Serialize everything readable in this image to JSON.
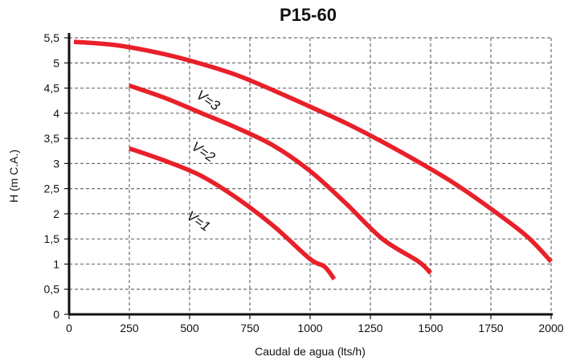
{
  "chart_data": {
    "type": "line",
    "title": "P15-60",
    "xlabel": "Caudal de agua (lts/h)",
    "ylabel": "H (m C.A.)",
    "xlim": [
      0,
      2000
    ],
    "ylim": [
      0,
      5.5
    ],
    "xticks": [
      0,
      250,
      500,
      750,
      1000,
      1250,
      1500,
      1750,
      2000
    ],
    "xtick_labels": [
      "0",
      "250",
      "500",
      "750",
      "1000",
      "1250",
      "1500",
      "1750",
      "2000"
    ],
    "yticks": [
      0,
      0.5,
      1,
      1.5,
      2,
      2.5,
      3,
      3.5,
      4,
      4.5,
      5,
      5.5
    ],
    "ytick_labels": [
      "0",
      "0,5",
      "1",
      "1,5",
      "2",
      "2,5",
      "3",
      "3,5",
      "4",
      "4,5",
      "5",
      "5,5"
    ],
    "grid": true,
    "line_color": "#e8202a",
    "series": [
      {
        "name": "V=1",
        "x": [
          250,
          400,
          550,
          700,
          850,
          1000,
          1060,
          1100
        ],
        "y": [
          3.3,
          3.05,
          2.75,
          2.3,
          1.75,
          1.1,
          0.95,
          0.7
        ]
      },
      {
        "name": "V=2",
        "x": [
          250,
          400,
          550,
          700,
          850,
          1000,
          1150,
          1300,
          1450,
          1500
        ],
        "y": [
          4.55,
          4.3,
          4.0,
          3.7,
          3.35,
          2.85,
          2.2,
          1.5,
          1.05,
          0.82
        ]
      },
      {
        "name": "V=3",
        "x": [
          20,
          200,
          400,
          550,
          700,
          850,
          1000,
          1150,
          1300,
          1450,
          1600,
          1750,
          1900,
          2000
        ],
        "y": [
          5.42,
          5.35,
          5.17,
          4.98,
          4.75,
          4.45,
          4.13,
          3.8,
          3.43,
          3.03,
          2.6,
          2.1,
          1.55,
          1.05
        ]
      }
    ]
  }
}
